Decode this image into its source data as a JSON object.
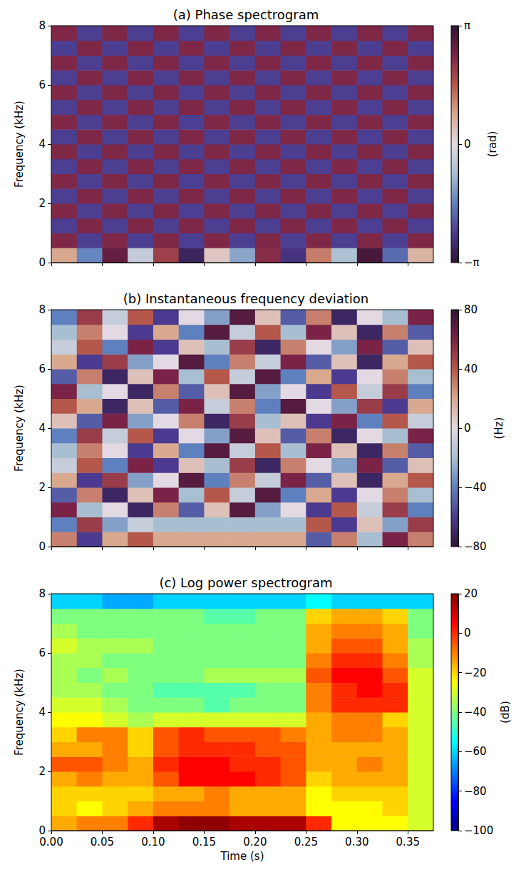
{
  "chart_data": [
    {
      "type": "heatmap",
      "title": "(a) Phase spectrogram",
      "ylabel": "Frequency (kHz)",
      "xlim": [
        0,
        0.375
      ],
      "ylim": [
        0,
        8
      ],
      "xticks": [
        0,
        0.05,
        0.1,
        0.15,
        0.2,
        0.25,
        0.3,
        0.35
      ],
      "yticks": [
        0,
        2,
        4,
        6,
        8
      ],
      "tick_labels": "y",
      "grid": false,
      "color": "twilight_shifted",
      "x_edges": [
        0,
        0.025,
        0.05,
        0.075,
        0.1,
        0.125,
        0.15,
        0.175,
        0.2,
        0.225,
        0.25,
        0.275,
        0.3,
        0.325,
        0.35,
        0.375
      ],
      "y_edges": [
        0,
        0.5,
        1,
        1.5,
        2,
        2.5,
        3,
        3.5,
        4,
        4.5,
        5,
        5.5,
        6,
        6.5,
        7,
        7.5,
        8
      ],
      "values": [
        [
          0.8,
          -1.5,
          2.6,
          -0.4,
          1.9,
          -2.8,
          0.3,
          -1.1,
          2.2,
          -2.5,
          1.2,
          -0.7,
          2.9,
          -1.8,
          0.6
        ],
        [
          2.3,
          -2.3,
          2.3,
          -2.3,
          2.3,
          -2.3,
          2.3,
          -2.3,
          2.3,
          -2.3,
          2.3,
          -2.3,
          2.3,
          -2.3,
          2.3
        ],
        [
          -2.3,
          2.3,
          -2.3,
          2.3,
          -2.3,
          2.3,
          -2.3,
          2.3,
          -2.3,
          2.3,
          -2.3,
          2.3,
          -2.3,
          2.3,
          -2.3
        ],
        [
          2.3,
          -2.3,
          2.3,
          -2.3,
          2.3,
          -2.3,
          2.3,
          -2.3,
          2.3,
          -2.3,
          2.3,
          -2.3,
          2.3,
          -2.3,
          2.3
        ],
        [
          -2.3,
          2.3,
          -2.3,
          2.3,
          -2.3,
          2.3,
          -2.3,
          2.3,
          -2.3,
          2.3,
          -2.3,
          2.3,
          -2.3,
          2.3,
          -2.3
        ],
        [
          2.3,
          -2.3,
          2.3,
          -2.3,
          2.3,
          -2.3,
          2.3,
          -2.3,
          2.3,
          -2.3,
          2.3,
          -2.3,
          2.3,
          -2.3,
          2.3
        ],
        [
          -2.3,
          2.3,
          -2.3,
          2.3,
          -2.3,
          2.3,
          -2.3,
          2.3,
          -2.3,
          2.3,
          -2.3,
          2.3,
          -2.3,
          2.3,
          -2.3
        ],
        [
          2.3,
          -2.3,
          2.3,
          -2.3,
          2.3,
          -2.3,
          2.3,
          -2.3,
          2.3,
          -2.3,
          2.3,
          -2.3,
          2.3,
          -2.3,
          2.3
        ],
        [
          -2.3,
          2.3,
          -2.3,
          2.3,
          -2.3,
          2.3,
          -2.3,
          2.3,
          -2.3,
          2.3,
          -2.3,
          2.3,
          -2.3,
          2.3,
          -2.3
        ],
        [
          2.3,
          -2.3,
          2.3,
          -2.3,
          2.3,
          -2.3,
          2.3,
          -2.3,
          2.3,
          -2.3,
          2.3,
          -2.3,
          2.3,
          -2.3,
          2.3
        ],
        [
          -2.3,
          2.3,
          -2.3,
          2.3,
          -2.3,
          2.3,
          -2.3,
          2.3,
          -2.3,
          2.3,
          -2.3,
          2.3,
          -2.3,
          2.3,
          -2.3
        ],
        [
          2.3,
          -2.3,
          2.3,
          -2.3,
          2.3,
          -2.3,
          2.3,
          -2.3,
          2.3,
          -2.3,
          2.3,
          -2.3,
          2.3,
          -2.3,
          2.3
        ],
        [
          -2.3,
          2.3,
          -2.3,
          2.3,
          -2.3,
          2.3,
          -2.3,
          2.3,
          -2.3,
          2.3,
          -2.3,
          2.3,
          -2.3,
          2.3,
          -2.3
        ],
        [
          2.3,
          -2.3,
          2.3,
          -2.3,
          2.3,
          -2.3,
          2.3,
          -2.3,
          2.3,
          -2.3,
          2.3,
          -2.3,
          2.3,
          -2.3,
          2.3
        ],
        [
          -2.3,
          2.3,
          -2.3,
          2.3,
          -2.3,
          2.3,
          -2.3,
          2.3,
          -2.3,
          2.3,
          -2.3,
          2.3,
          -2.3,
          2.3,
          -2.3
        ],
        [
          2.3,
          -2.3,
          2.3,
          -2.3,
          2.3,
          -2.3,
          2.3,
          -2.3,
          2.3,
          -2.3,
          2.3,
          -2.3,
          2.3,
          -2.3,
          2.3
        ]
      ],
      "colorbar": {
        "range": [
          -3.141593,
          3.141593
        ],
        "label": "(rad)",
        "ticks": [
          {
            "value": -3.141593,
            "label": "−π"
          },
          0,
          {
            "value": 3.141593,
            "label": "π"
          }
        ]
      }
    },
    {
      "type": "heatmap",
      "title": "(b) Instantaneous frequency deviation",
      "ylabel": "Frequency (kHz)",
      "xlim": [
        0,
        0.375
      ],
      "ylim": [
        0,
        8
      ],
      "xticks": [
        0,
        0.05,
        0.1,
        0.15,
        0.2,
        0.25,
        0.3,
        0.35
      ],
      "yticks": [
        0,
        2,
        4,
        6,
        8
      ],
      "tick_labels": "y",
      "grid": false,
      "color": "twilight_shifted",
      "x_edges": [
        0,
        0.025,
        0.05,
        0.075,
        0.1,
        0.125,
        0.15,
        0.175,
        0.2,
        0.225,
        0.25,
        0.275,
        0.3,
        0.325,
        0.35,
        0.375
      ],
      "y_edges": [
        0,
        0.5,
        1,
        1.5,
        2,
        2.5,
        3,
        3.5,
        4,
        4.5,
        5,
        5.5,
        6,
        6.5,
        7,
        7.5,
        8
      ],
      "values": [
        [
          30,
          -60,
          20,
          40,
          20,
          20,
          20,
          20,
          20,
          20,
          -50,
          30,
          -20,
          60,
          30
        ],
        [
          -40,
          50,
          -30,
          -10,
          -20,
          -20,
          -20,
          -20,
          -20,
          -20,
          40,
          -60,
          10,
          -30,
          50
        ],
        [
          60,
          -20,
          0,
          -70,
          30,
          -50,
          10,
          70,
          -30,
          0,
          -60,
          40,
          -10,
          50,
          -40
        ],
        [
          -50,
          30,
          -70,
          10,
          60,
          -20,
          40,
          -10,
          70,
          -40,
          20,
          -60,
          0,
          30,
          -20
        ],
        [
          20,
          -60,
          50,
          -30,
          0,
          70,
          -40,
          30,
          -10,
          60,
          -50,
          10,
          -70,
          20,
          40
        ],
        [
          -10,
          40,
          -40,
          60,
          -60,
          10,
          -20,
          50,
          -70,
          30,
          0,
          -30,
          60,
          -50,
          10
        ],
        [
          -20,
          30,
          0,
          -60,
          20,
          -40,
          70,
          -10,
          40,
          -20,
          60,
          10,
          -70,
          30,
          -50
        ],
        [
          -40,
          50,
          -10,
          40,
          -60,
          0,
          -30,
          70,
          10,
          -50,
          30,
          -70,
          0,
          -20,
          60
        ],
        [
          10,
          -50,
          60,
          -30,
          0,
          30,
          -70,
          50,
          -20,
          10,
          -60,
          60,
          -40,
          40,
          -10
        ],
        [
          40,
          20,
          -70,
          10,
          -50,
          60,
          -10,
          30,
          -40,
          70,
          0,
          -30,
          50,
          -60,
          20
        ],
        [
          60,
          -20,
          0,
          -70,
          30,
          -50,
          10,
          70,
          -30,
          0,
          -60,
          40,
          -10,
          50,
          -40
        ],
        [
          -50,
          30,
          -70,
          10,
          60,
          -20,
          40,
          -10,
          70,
          -40,
          20,
          -60,
          0,
          30,
          -20
        ],
        [
          20,
          -60,
          50,
          -30,
          0,
          70,
          -40,
          30,
          -10,
          60,
          -50,
          10,
          -70,
          20,
          40
        ],
        [
          -10,
          40,
          -40,
          60,
          -60,
          10,
          -20,
          50,
          -70,
          30,
          0,
          -30,
          60,
          -50,
          10
        ],
        [
          -20,
          30,
          0,
          -60,
          20,
          -40,
          70,
          -10,
          40,
          -20,
          60,
          10,
          -70,
          30,
          -50
        ],
        [
          -40,
          50,
          -10,
          40,
          -60,
          0,
          -30,
          70,
          10,
          -50,
          30,
          -70,
          0,
          -20,
          60
        ]
      ],
      "colorbar": {
        "range": [
          -80,
          80
        ],
        "label": "(Hz)",
        "ticks": [
          {
            "value": -80,
            "label": "−80"
          },
          {
            "value": -40,
            "label": "−40"
          },
          0,
          40,
          80
        ]
      }
    },
    {
      "type": "heatmap",
      "title": "(c) Log power spectrogram",
      "xlabel": "Time (s)",
      "ylabel": "Frequency (kHz)",
      "xlim": [
        0,
        0.375
      ],
      "ylim": [
        0,
        8
      ],
      "xticks": [
        {
          "value": 0,
          "label": "0.00"
        },
        0.05,
        {
          "value": 0.1,
          "label": "0.10"
        },
        0.15,
        {
          "value": 0.2,
          "label": "0.20"
        },
        0.25,
        {
          "value": 0.3,
          "label": "0.30"
        },
        0.35
      ],
      "yticks": [
        0,
        2,
        4,
        6,
        8
      ],
      "grid": false,
      "color": "jet",
      "x_edges": [
        0,
        0.025,
        0.05,
        0.075,
        0.1,
        0.125,
        0.15,
        0.175,
        0.2,
        0.225,
        0.25,
        0.275,
        0.3,
        0.325,
        0.35,
        0.375
      ],
      "y_edges": [
        0,
        0.5,
        1,
        1.5,
        2,
        2.5,
        3,
        3.5,
        4,
        4.5,
        5,
        5.5,
        6,
        6.5,
        7,
        7.5,
        8
      ],
      "values": [
        [
          -15,
          -10,
          -10,
          0,
          15,
          18,
          18,
          15,
          15,
          15,
          0,
          -25,
          -25,
          -25,
          -30
        ],
        [
          -20,
          -25,
          -20,
          -15,
          -10,
          -10,
          -10,
          -15,
          -15,
          -15,
          -25,
          -25,
          -25,
          -20,
          -30
        ],
        [
          -20,
          -20,
          -20,
          -20,
          -15,
          -15,
          -10,
          -15,
          -15,
          -15,
          -25,
          -20,
          -20,
          -20,
          -30
        ],
        [
          -15,
          -10,
          -15,
          -15,
          -5,
          5,
          5,
          5,
          0,
          -5,
          -20,
          -15,
          -15,
          -15,
          -30
        ],
        [
          -5,
          -5,
          -10,
          -15,
          0,
          5,
          5,
          0,
          0,
          -5,
          -15,
          -15,
          -10,
          -15,
          -30
        ],
        [
          -15,
          -15,
          -10,
          -20,
          -5,
          0,
          0,
          0,
          -5,
          -5,
          -15,
          -15,
          -15,
          -15,
          -30
        ],
        [
          -20,
          -10,
          -10,
          -20,
          -5,
          0,
          -5,
          -5,
          -5,
          -10,
          -15,
          -10,
          -10,
          -15,
          -30
        ],
        [
          -25,
          -25,
          -30,
          -35,
          -30,
          -30,
          -30,
          -30,
          -30,
          -30,
          -15,
          -10,
          -10,
          -20,
          -30
        ],
        [
          -30,
          -30,
          -35,
          -40,
          -40,
          -40,
          -45,
          -40,
          -40,
          -40,
          -10,
          0,
          0,
          0,
          -30
        ],
        [
          -35,
          -35,
          -40,
          -40,
          -45,
          -45,
          -45,
          -45,
          -40,
          -40,
          -10,
          0,
          5,
          0,
          -30
        ],
        [
          -35,
          -40,
          -35,
          -40,
          -40,
          -40,
          -35,
          -35,
          -35,
          -35,
          -5,
          5,
          5,
          -5,
          -30
        ],
        [
          -35,
          -35,
          -40,
          -40,
          -40,
          -40,
          -40,
          -40,
          -40,
          -40,
          -10,
          0,
          0,
          -10,
          -35
        ],
        [
          -30,
          -35,
          -35,
          -35,
          -40,
          -40,
          -40,
          -40,
          -40,
          -40,
          -15,
          -5,
          -5,
          -15,
          -35
        ],
        [
          -35,
          -40,
          -40,
          -40,
          -40,
          -40,
          -40,
          -40,
          -40,
          -40,
          -15,
          -10,
          -10,
          -15,
          -40
        ],
        [
          -40,
          -40,
          -40,
          -40,
          -40,
          -40,
          -45,
          -45,
          -40,
          -40,
          -20,
          -15,
          -15,
          -20,
          -40
        ],
        [
          -60,
          -60,
          -65,
          -65,
          -60,
          -60,
          -60,
          -60,
          -60,
          -60,
          -55,
          -60,
          -60,
          -60,
          -60
        ]
      ],
      "colorbar": {
        "range": [
          -100,
          20
        ],
        "label": "(dB)",
        "ticks": [
          {
            "value": -100,
            "label": "−100"
          },
          {
            "value": -80,
            "label": "−80"
          },
          {
            "value": -60,
            "label": "−60"
          },
          {
            "value": -40,
            "label": "−40"
          },
          {
            "value": -20,
            "label": "−20"
          },
          0,
          20
        ]
      }
    }
  ]
}
